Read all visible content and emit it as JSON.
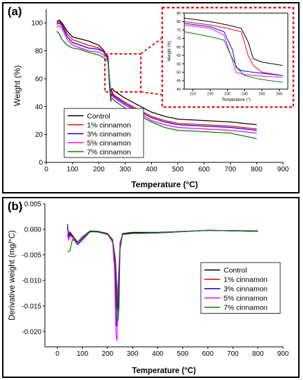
{
  "panels": [
    {
      "label": "(a)",
      "chart_data": {
        "type": "line",
        "xlabel": "Temperature (°C)",
        "ylabel": "Weight (%)",
        "xlim": [
          0,
          900
        ],
        "ylim": [
          0,
          110
        ],
        "xticks": [
          "0",
          "100",
          "200",
          "300",
          "400",
          "500",
          "600",
          "700",
          "800",
          "900"
        ],
        "yticks": [
          "0",
          "20",
          "40",
          "60",
          "80",
          "100"
        ],
        "legend_position": "bottom-right",
        "series": [
          {
            "name": "Control",
            "color": "#000000",
            "x": [
              40,
              50,
              60,
              80,
              100,
              130,
              160,
              200,
              220,
              235,
              240,
              245,
              250,
              260,
              300,
              350,
              400,
              450,
              500,
              600,
              700,
              800
            ],
            "y": [
              101,
              102,
              100,
              94,
              90,
              88.5,
              87,
              84,
              80,
              73,
              60,
              50,
              53,
              51,
              46,
              41,
              36,
              33,
              31,
              30,
              29,
              27
            ]
          },
          {
            "name": "1% cinnamon",
            "color": "#ff0000",
            "x": [
              40,
              50,
              60,
              80,
              100,
              130,
              160,
              200,
              220,
              235,
              240,
              245,
              250,
              260,
              300,
              350,
              400,
              450,
              500,
              600,
              700,
              800
            ],
            "y": [
              100,
              101,
              99,
              92,
              88,
              86,
              84,
              82,
              79,
              75,
              58,
              47,
              50,
              48,
              43,
              38,
              33,
              30,
              28,
              27,
              26,
              24
            ]
          },
          {
            "name": "3% cinnamon",
            "color": "#0000ff",
            "x": [
              40,
              50,
              60,
              80,
              100,
              130,
              160,
              200,
              220,
              235,
              240,
              245,
              250,
              260,
              300,
              350,
              400,
              450,
              500,
              600,
              700,
              800
            ],
            "y": [
              99,
              100,
              98,
              90,
              86,
              84,
              82,
              81,
              79,
              76,
              58,
              47,
              49,
              47,
              42,
              37,
              32,
              29,
              27,
              26,
              25,
              23
            ]
          },
          {
            "name": "5% cinnamon",
            "color": "#ff00ff",
            "x": [
              40,
              50,
              60,
              80,
              100,
              130,
              160,
              200,
              220,
              235,
              240,
              245,
              250,
              260,
              300,
              350,
              400,
              450,
              500,
              600,
              700,
              800
            ],
            "y": [
              97,
              98,
              96,
              88,
              84,
              82,
              80,
              79,
              77,
              75,
              57,
              46,
              48,
              46,
              41,
              36,
              30,
              27,
              25,
              24,
              23,
              21
            ]
          },
          {
            "name": "7% cinnamon",
            "color": "#008000",
            "x": [
              40,
              50,
              60,
              80,
              100,
              130,
              160,
              200,
              220,
              235,
              240,
              245,
              250,
              260,
              300,
              350,
              400,
              450,
              500,
              600,
              700,
              800
            ],
            "y": [
              94,
              92,
              88,
              84,
              82,
              81,
              79,
              77,
              75,
              72,
              55,
              44,
              46,
              44,
              39,
              34,
              29,
              25,
              23,
              22,
              21,
              17
            ]
          }
        ],
        "inset": {
          "xlabel": "Temperature (°)",
          "ylabel": "Weight (%)",
          "xlim": [
            205,
            265
          ],
          "ylim": [
            40,
            85
          ],
          "xticks": [
            "210",
            "220",
            "230",
            "240",
            "250",
            "260"
          ],
          "yticks": [
            "40",
            "45",
            "50",
            "55",
            "60",
            "65",
            "70",
            "75",
            "80",
            "85"
          ],
          "series": [
            {
              "name": "Control",
              "color": "#000000",
              "x": [
                205,
                220,
                230,
                238,
                242,
                245,
                250,
                262
              ],
              "y": [
                82,
                80,
                78,
                76,
                68,
                58,
                56,
                54
              ]
            },
            {
              "name": "1% cinnamon",
              "color": "#ff0000",
              "x": [
                205,
                220,
                230,
                238,
                242,
                245,
                250,
                262
              ],
              "y": [
                80,
                78,
                76,
                74,
                60,
                54,
                50,
                48
              ]
            },
            {
              "name": "3% cinnamon",
              "color": "#0000ff",
              "x": [
                205,
                220,
                228,
                233,
                235,
                238,
                245,
                262
              ],
              "y": [
                79,
                77,
                74,
                63,
                53,
                51,
                50,
                48
              ]
            },
            {
              "name": "5% cinnamon",
              "color": "#ff00ff",
              "x": [
                205,
                220,
                228,
                232,
                235,
                238,
                245,
                262
              ],
              "y": [
                78,
                76,
                72,
                60,
                50,
                49,
                48,
                47
              ]
            },
            {
              "name": "7% cinnamon",
              "color": "#008000",
              "x": [
                205,
                220,
                228,
                232,
                236,
                240,
                248,
                262
              ],
              "y": [
                74,
                71,
                69,
                60,
                52,
                48,
                46,
                44
              ]
            }
          ]
        }
      }
    },
    {
      "label": "(b)",
      "chart_data": {
        "type": "line",
        "xlabel": "Temperature (°C)",
        "ylabel": "Derivative weight (mg/°C)",
        "xlim": [
          -50,
          900
        ],
        "ylim": [
          -0.023,
          0.005
        ],
        "xticks": [
          "0",
          "100",
          "200",
          "300",
          "400",
          "500",
          "600",
          "700",
          "800",
          "900"
        ],
        "yticks": [
          "0.005",
          "0.000",
          "-0.005",
          "-0.010",
          "-0.015",
          "-0.020"
        ],
        "legend_position": "right",
        "series": [
          {
            "name": "Control",
            "color": "#000000",
            "x": [
              40,
              45,
              50,
              60,
              80,
              100,
              130,
              160,
              200,
              220,
              232,
              238,
              242,
              246,
              250,
              260,
              300,
              400,
              600,
              800
            ],
            "y": [
              0.001,
              -0.0015,
              -0.0005,
              -0.0012,
              -0.0025,
              -0.0015,
              -0.0003,
              -0.0004,
              -0.0008,
              -0.002,
              -0.006,
              -0.015,
              -0.017,
              -0.013,
              -0.003,
              -0.0008,
              -0.0006,
              -0.0006,
              -0.0002,
              -0.0003
            ]
          },
          {
            "name": "1% cinnamon",
            "color": "#ff0000",
            "x": [
              40,
              45,
              50,
              60,
              80,
              100,
              130,
              160,
              200,
              220,
              232,
              236,
              240,
              244,
              250,
              260,
              300,
              400,
              600,
              800
            ],
            "y": [
              0.0005,
              -0.001,
              -0.0008,
              -0.0015,
              -0.0028,
              -0.0018,
              -0.0004,
              -0.0005,
              -0.0009,
              -0.002,
              -0.007,
              -0.015,
              -0.016,
              -0.012,
              -0.003,
              -0.0009,
              -0.0008,
              -0.0007,
              -0.0002,
              -0.0004
            ]
          },
          {
            "name": "3% cinnamon",
            "color": "#0000ff",
            "x": [
              40,
              45,
              50,
              60,
              80,
              100,
              130,
              160,
              200,
              220,
              230,
              236,
              240,
              244,
              250,
              260,
              300,
              400,
              600,
              800
            ],
            "y": [
              0.0003,
              -0.0012,
              -0.0009,
              -0.0016,
              -0.003,
              -0.002,
              -0.0005,
              -0.0005,
              -0.001,
              -0.0022,
              -0.008,
              -0.019,
              -0.018,
              -0.012,
              -0.003,
              -0.001,
              -0.0008,
              -0.0007,
              -0.0002,
              -0.0004
            ]
          },
          {
            "name": "5% cinnamon",
            "color": "#ff00ff",
            "x": [
              40,
              45,
              50,
              60,
              80,
              100,
              130,
              160,
              200,
              220,
              228,
              234,
              238,
              242,
              250,
              260,
              300,
              400,
              600,
              800
            ],
            "y": [
              -0.001,
              -0.0022,
              -0.0012,
              -0.0016,
              -0.0028,
              -0.0018,
              -0.0004,
              -0.0005,
              -0.001,
              -0.0025,
              -0.008,
              -0.021,
              -0.0218,
              -0.011,
              -0.0025,
              -0.001,
              -0.0008,
              -0.0007,
              -0.0002,
              -0.0004
            ]
          },
          {
            "name": "7% cinnamon",
            "color": "#008000",
            "x": [
              40,
              45,
              50,
              60,
              80,
              100,
              130,
              160,
              200,
              220,
              232,
              238,
              242,
              246,
              250,
              260,
              300,
              400,
              600,
              800
            ],
            "y": [
              -0.0043,
              -0.0043,
              -0.0042,
              -0.002,
              -0.0025,
              -0.0016,
              -0.0004,
              -0.0005,
              -0.0009,
              -0.002,
              -0.006,
              -0.012,
              -0.018,
              -0.015,
              -0.004,
              -0.001,
              -0.0008,
              -0.0007,
              -0.0002,
              -0.0004
            ]
          }
        ]
      }
    }
  ]
}
